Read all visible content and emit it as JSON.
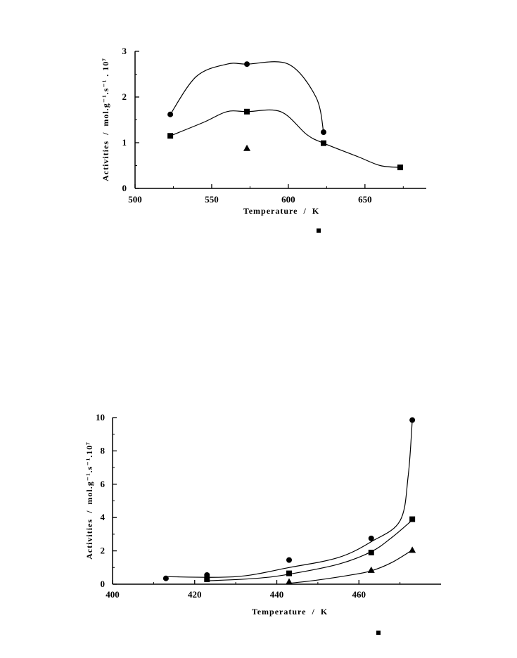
{
  "chart_data": [
    {
      "type": "scatter",
      "xlabel": "Temperature  /  K",
      "ylabel": "Activities  /  mol.g⁻¹.s⁻¹ . 10⁷",
      "xlim": [
        500,
        690
      ],
      "ylim": [
        0,
        3
      ],
      "xticks": [
        "500",
        "550",
        "600",
        "650"
      ],
      "yticks": [
        "0",
        "1",
        "2",
        "3"
      ],
      "grid": false,
      "series": [
        {
          "marker": "circle",
          "x": [
            523,
            573,
            623
          ],
          "y": [
            1.62,
            2.72,
            1.23
          ]
        },
        {
          "marker": "square",
          "x": [
            523,
            573,
            623,
            673
          ],
          "y": [
            1.15,
            1.68,
            0.99,
            0.46
          ]
        },
        {
          "marker": "triangle",
          "x": [
            573
          ],
          "y": [
            0.88
          ]
        }
      ]
    },
    {
      "type": "scatter",
      "xlabel": "Temperature  /  K",
      "ylabel": "Activities  /  mol.g⁻¹.s⁻¹.10⁷",
      "xlim": [
        400,
        480
      ],
      "ylim": [
        0,
        10
      ],
      "xticks": [
        "400",
        "420",
        "440",
        "460"
      ],
      "yticks": [
        "0",
        "2",
        "4",
        "6",
        "8",
        "10"
      ],
      "grid": false,
      "series": [
        {
          "marker": "circle",
          "x": [
            413,
            423,
            443,
            463,
            473
          ],
          "y": [
            0.35,
            0.55,
            1.45,
            2.75,
            9.85
          ]
        },
        {
          "marker": "square",
          "x": [
            423,
            443,
            463,
            473
          ],
          "y": [
            0.3,
            0.65,
            1.9,
            3.9
          ]
        },
        {
          "marker": "triangle",
          "x": [
            443,
            463,
            473
          ],
          "y": [
            0.15,
            0.85,
            2.05
          ]
        }
      ]
    }
  ]
}
